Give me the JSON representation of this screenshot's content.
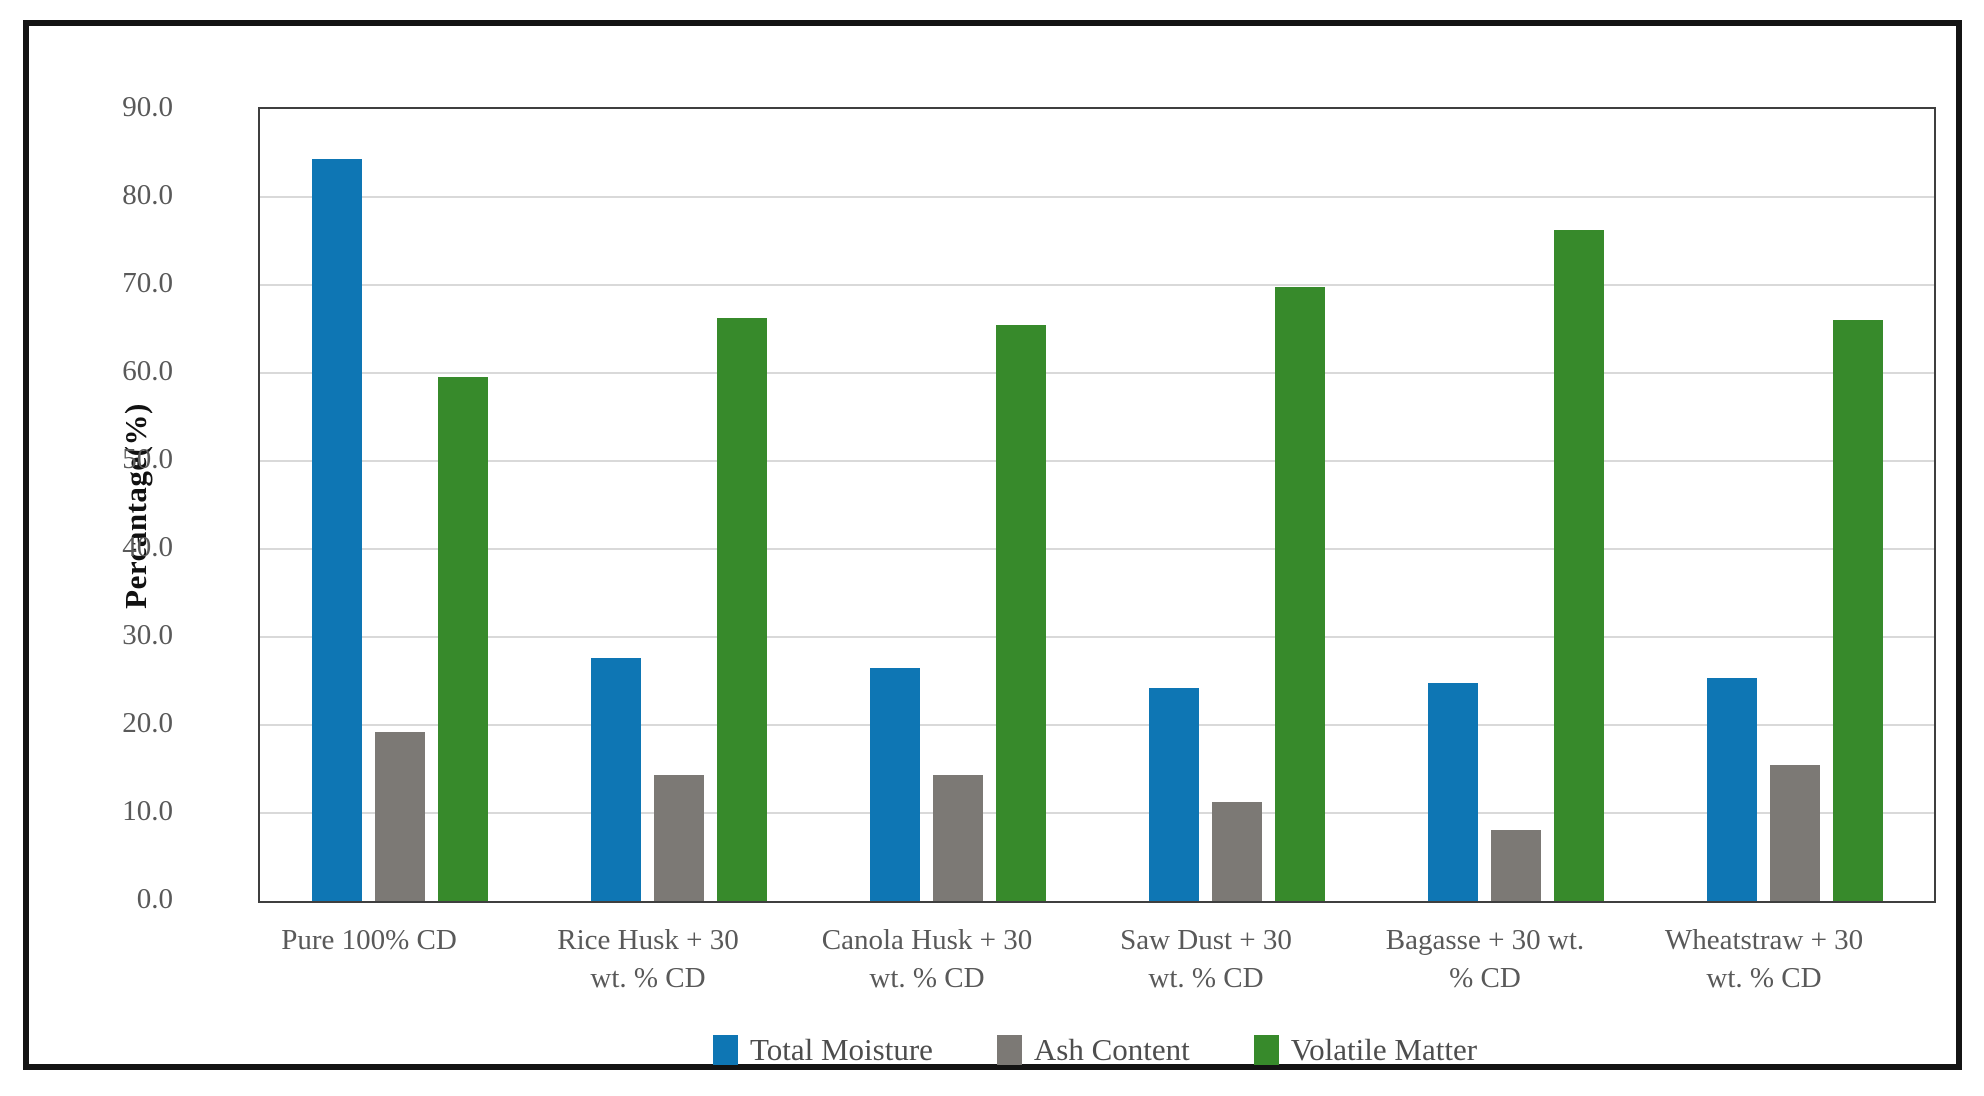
{
  "figure": {
    "y_axis_title": "Percantage(%)",
    "y_tick_labels": [
      "90.0",
      "80.0",
      "70.0",
      "60.0",
      "50.0",
      "40.0",
      "30.0",
      "20.0",
      "10.0",
      "0.0"
    ]
  },
  "chart_data": {
    "type": "bar",
    "title": "",
    "xlabel": "",
    "ylabel": "Percantage(%)",
    "ylim": [
      0,
      90
    ],
    "y_tick_step": 10,
    "grid": true,
    "legend_position": "bottom",
    "categories": [
      "Pure 100% CD",
      "Rice Husk + 30 wt. % CD",
      "Canola Husk + 30 wt. % CD",
      "Saw Dust + 30 wt. % CD",
      "Bagasse + 30 wt. % CD",
      "Wheatstraw + 30 wt. % CD"
    ],
    "category_lines": [
      [
        "Pure 100% CD"
      ],
      [
        "Rice Husk + 30",
        "wt. % CD"
      ],
      [
        "Canola Husk + 30",
        "wt. % CD"
      ],
      [
        "Saw Dust + 30",
        "wt. % CD"
      ],
      [
        "Bagasse + 30 wt.",
        "% CD"
      ],
      [
        "Wheatstraw + 30",
        "wt. % CD"
      ]
    ],
    "series": [
      {
        "name": "Total Moisture",
        "color": "#0E76B4",
        "values": [
          84.3,
          27.6,
          26.5,
          24.2,
          24.8,
          25.3
        ]
      },
      {
        "name": "Ash Content",
        "color": "#7C7975",
        "values": [
          19.2,
          14.3,
          14.3,
          11.2,
          8.1,
          15.4
        ]
      },
      {
        "name": "Volatile Matter",
        "color": "#378A2B",
        "values": [
          59.5,
          66.2,
          65.5,
          69.8,
          76.3,
          66.0
        ]
      }
    ]
  }
}
